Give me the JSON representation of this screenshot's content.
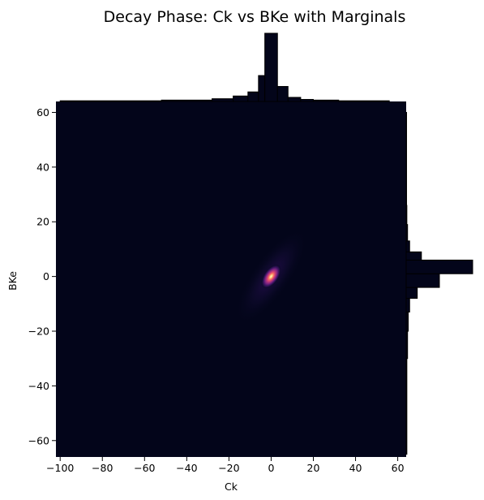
{
  "chart_data": {
    "type": "heatmap",
    "title": "Decay Phase: Ck vs BKe with Marginals",
    "xlabel": "Ck",
    "ylabel": "BKe",
    "xlim": [
      -102,
      64
    ],
    "ylim": [
      -66,
      64
    ],
    "x_ticks": [
      -100,
      -80,
      -60,
      -40,
      -20,
      0,
      20,
      40,
      60
    ],
    "y_ticks": [
      -60,
      -40,
      -20,
      0,
      20,
      40,
      60
    ],
    "x_tick_labels": [
      "−100",
      "−80",
      "−60",
      "−40",
      "−20",
      "0",
      "20",
      "40",
      "60"
    ],
    "y_tick_labels": [
      "−60",
      "−40",
      "−20",
      "0",
      "20",
      "40",
      "60"
    ],
    "density": {
      "peak_x": 0,
      "peak_y": 0,
      "correlation": 0.85,
      "colormap": "magma"
    },
    "marginal_x": {
      "bin_edges": [
        -100,
        -52,
        -28,
        -18,
        -11,
        -6,
        -3,
        3,
        8,
        14,
        20,
        32,
        56
      ],
      "counts": [
        0.5,
        1.0,
        2.0,
        4.0,
        7.0,
        19.0,
        50.0,
        11.0,
        3.0,
        1.5,
        1.0,
        0.5
      ]
    },
    "marginal_y": {
      "bin_edges": [
        -65,
        -30,
        -20,
        -13,
        -8,
        -4,
        1,
        6,
        9,
        13,
        19,
        26,
        60
      ],
      "counts": [
        0.5,
        1.0,
        1.5,
        2.5,
        8.0,
        24.0,
        48.0,
        11.0,
        2.5,
        1.0,
        0.5,
        0.3
      ]
    },
    "colors": {
      "background": "#03051a",
      "bar_fill": "#03051a",
      "bar_edge": "#000000"
    }
  }
}
